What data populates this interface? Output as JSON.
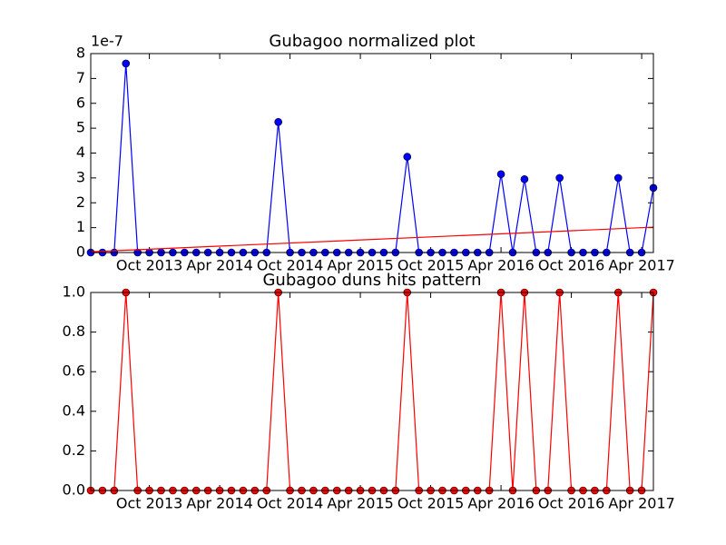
{
  "chart_data": [
    {
      "type": "line",
      "title": "Gubagoo normalized plot",
      "y_offset_label": "1e-7",
      "x": [
        "2013-05",
        "2013-06",
        "2013-07",
        "2013-08",
        "2013-09",
        "2013-10",
        "2013-11",
        "2013-12",
        "2014-01",
        "2014-02",
        "2014-03",
        "2014-04",
        "2014-05",
        "2014-06",
        "2014-07",
        "2014-08",
        "2014-09",
        "2014-10",
        "2014-11",
        "2014-12",
        "2015-01",
        "2015-02",
        "2015-03",
        "2015-04",
        "2015-05",
        "2015-06",
        "2015-07",
        "2015-08",
        "2015-09",
        "2015-10",
        "2015-11",
        "2015-12",
        "2016-01",
        "2016-02",
        "2016-03",
        "2016-04",
        "2016-05",
        "2016-06",
        "2016-07",
        "2016-08",
        "2016-09",
        "2016-10",
        "2016-11",
        "2016-12",
        "2017-01",
        "2017-02",
        "2017-03",
        "2017-04",
        "2017-05"
      ],
      "xlim": [
        "2013-05",
        "2017-05"
      ],
      "xticks": [
        {
          "value": "2013-10",
          "label": "Oct 2013"
        },
        {
          "value": "2014-04",
          "label": "Apr 2014"
        },
        {
          "value": "2014-10",
          "label": "Oct 2014"
        },
        {
          "value": "2015-04",
          "label": "Apr 2015"
        },
        {
          "value": "2015-10",
          "label": "Oct 2015"
        },
        {
          "value": "2016-04",
          "label": "Apr 2016"
        },
        {
          "value": "2016-10",
          "label": "Oct 2016"
        },
        {
          "value": "2017-04",
          "label": "Apr 2017"
        }
      ],
      "ylim": [
        0,
        8
      ],
      "yticks": [
        0,
        1,
        2,
        3,
        4,
        5,
        6,
        7,
        8
      ],
      "series": [
        {
          "color": "#0000ff",
          "markers": true,
          "values": [
            0,
            0,
            0,
            7.6,
            0,
            0,
            0,
            0,
            0,
            0,
            0,
            0,
            0,
            0,
            0,
            0,
            5.25,
            0,
            0,
            0,
            0,
            0,
            0,
            0,
            0,
            0,
            0,
            3.85,
            0,
            0,
            0,
            0,
            0,
            0,
            0,
            3.15,
            0,
            2.95,
            0,
            0,
            3.0,
            0,
            0,
            0,
            0,
            3.0,
            0,
            0,
            2.6
          ]
        },
        {
          "color": "#ff0000",
          "markers": false,
          "x": [
            "2013-05",
            "2017-05"
          ],
          "values": [
            0.03,
            1.02
          ]
        }
      ]
    },
    {
      "type": "line",
      "title": "Gubagoo duns hits pattern",
      "x": [
        "2013-05",
        "2013-06",
        "2013-07",
        "2013-08",
        "2013-09",
        "2013-10",
        "2013-11",
        "2013-12",
        "2014-01",
        "2014-02",
        "2014-03",
        "2014-04",
        "2014-05",
        "2014-06",
        "2014-07",
        "2014-08",
        "2014-09",
        "2014-10",
        "2014-11",
        "2014-12",
        "2015-01",
        "2015-02",
        "2015-03",
        "2015-04",
        "2015-05",
        "2015-06",
        "2015-07",
        "2015-08",
        "2015-09",
        "2015-10",
        "2015-11",
        "2015-12",
        "2016-01",
        "2016-02",
        "2016-03",
        "2016-04",
        "2016-05",
        "2016-06",
        "2016-07",
        "2016-08",
        "2016-09",
        "2016-10",
        "2016-11",
        "2016-12",
        "2017-01",
        "2017-02",
        "2017-03",
        "2017-04",
        "2017-05"
      ],
      "xlim": [
        "2013-05",
        "2017-05"
      ],
      "xticks": [
        {
          "value": "2013-10",
          "label": "Oct 2013"
        },
        {
          "value": "2014-04",
          "label": "Apr 2014"
        },
        {
          "value": "2014-10",
          "label": "Oct 2014"
        },
        {
          "value": "2015-04",
          "label": "Apr 2015"
        },
        {
          "value": "2015-10",
          "label": "Oct 2015"
        },
        {
          "value": "2016-04",
          "label": "Apr 2016"
        },
        {
          "value": "2016-10",
          "label": "Oct 2016"
        },
        {
          "value": "2017-04",
          "label": "Apr 2017"
        }
      ],
      "ylim": [
        0,
        1
      ],
      "yticks": [
        {
          "value": 0,
          "label": "0.0"
        },
        0.2,
        0.4,
        0.6,
        0.8,
        {
          "value": 1,
          "label": "1.0"
        }
      ],
      "series": [
        {
          "color": "#ff0000",
          "markers": true,
          "values": [
            0,
            0,
            0,
            1,
            0,
            0,
            0,
            0,
            0,
            0,
            0,
            0,
            0,
            0,
            0,
            0,
            1,
            0,
            0,
            0,
            0,
            0,
            0,
            0,
            0,
            0,
            0,
            1,
            0,
            0,
            0,
            0,
            0,
            0,
            0,
            1,
            0,
            1,
            0,
            0,
            1,
            0,
            0,
            0,
            0,
            1,
            0,
            0,
            1
          ]
        }
      ]
    }
  ]
}
